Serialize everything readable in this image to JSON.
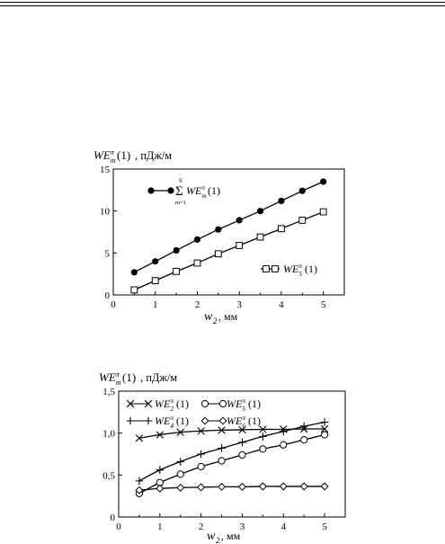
{
  "chart_data": [
    {
      "type": "line",
      "ylabel_parts": {
        "main": "WE",
        "sup": "π",
        "sub": "m",
        "arg": "(1)",
        "unit": ", пДж/м"
      },
      "xlabel_parts": {
        "main": "w",
        "sub": "2",
        "unit": " , мм"
      },
      "xlim": [
        0,
        5.5
      ],
      "ylim": [
        0,
        15
      ],
      "x_ticks": [
        "0",
        "1",
        "2",
        "3",
        "4",
        "5"
      ],
      "y_ticks": [
        "0",
        "5",
        "10",
        "15"
      ],
      "grid": false,
      "legend_placement": "inside",
      "series": [
        {
          "marker": "filled-circle",
          "legend": {
            "sup": "6",
            "sigma": "Σ",
            "below": "m=1",
            "main": "WE",
            "lsup": "π",
            "lsub": "m",
            "arg": "(1)"
          },
          "x": [
            0.5,
            1,
            1.5,
            2,
            2.5,
            3,
            3.5,
            4,
            4.5,
            5
          ],
          "y": [
            2.7,
            4.0,
            5.3,
            6.6,
            7.8,
            8.9,
            10.0,
            11.2,
            12.4,
            13.5
          ]
        },
        {
          "marker": "open-square",
          "legend": {
            "main": "WE",
            "lsup": "π",
            "lsub": "5",
            "arg": "(1)"
          },
          "x": [
            0.5,
            1,
            1.5,
            2,
            2.5,
            3,
            3.5,
            4,
            4.5,
            5
          ],
          "y": [
            0.6,
            1.7,
            2.8,
            3.8,
            4.9,
            5.9,
            6.9,
            7.9,
            8.9,
            9.9
          ]
        }
      ]
    },
    {
      "type": "line",
      "ylabel_parts": {
        "main": "WE",
        "sup": "π",
        "sub": "m",
        "arg": "(1)",
        "unit": ", пДж/м"
      },
      "xlabel_parts": {
        "main": "w",
        "sub": "2",
        "unit": " , мм"
      },
      "xlim": [
        0,
        5.5
      ],
      "ylim": [
        0,
        1.5
      ],
      "x_ticks": [
        "0",
        "1",
        "2",
        "3",
        "4",
        "5"
      ],
      "y_ticks": [
        "0",
        "0,5",
        "1,0",
        "1,5"
      ],
      "grid": false,
      "legend_placement": "top",
      "series": [
        {
          "marker": "x",
          "legend": {
            "main": "WE",
            "lsup": "π",
            "lsub": "2",
            "arg": "(1)"
          },
          "x": [
            0.5,
            1,
            1.5,
            2,
            2.5,
            3,
            3.5,
            4,
            4.5,
            5
          ],
          "y": [
            0.94,
            0.98,
            1.01,
            1.025,
            1.035,
            1.04,
            1.045,
            1.045,
            1.05,
            1.05
          ]
        },
        {
          "marker": "plus",
          "legend": {
            "main": "WE",
            "lsup": "π",
            "lsub": "4",
            "arg": "(1)"
          },
          "x": [
            0.5,
            1,
            1.5,
            2,
            2.5,
            3,
            3.5,
            4,
            4.5,
            5
          ],
          "y": [
            0.43,
            0.56,
            0.66,
            0.75,
            0.82,
            0.89,
            0.96,
            1.02,
            1.08,
            1.13
          ]
        },
        {
          "marker": "open-circle",
          "legend": {
            "main": "WE",
            "lsup": "π",
            "lsub": "5",
            "arg": "(1)"
          },
          "x": [
            0.5,
            1,
            1.5,
            2,
            2.5,
            3,
            3.5,
            4,
            4.5,
            5
          ],
          "y": [
            0.28,
            0.41,
            0.51,
            0.6,
            0.67,
            0.74,
            0.81,
            0.86,
            0.92,
            0.98
          ]
        },
        {
          "marker": "open-diamond",
          "legend": {
            "main": "WE",
            "lsup": "π",
            "lsub": "6",
            "arg": "(1)"
          },
          "x": [
            0.5,
            1,
            1.5,
            2,
            2.5,
            3,
            3.5,
            4,
            4.5,
            5
          ],
          "y": [
            0.32,
            0.34,
            0.35,
            0.355,
            0.36,
            0.36,
            0.365,
            0.365,
            0.365,
            0.365
          ]
        }
      ]
    }
  ]
}
